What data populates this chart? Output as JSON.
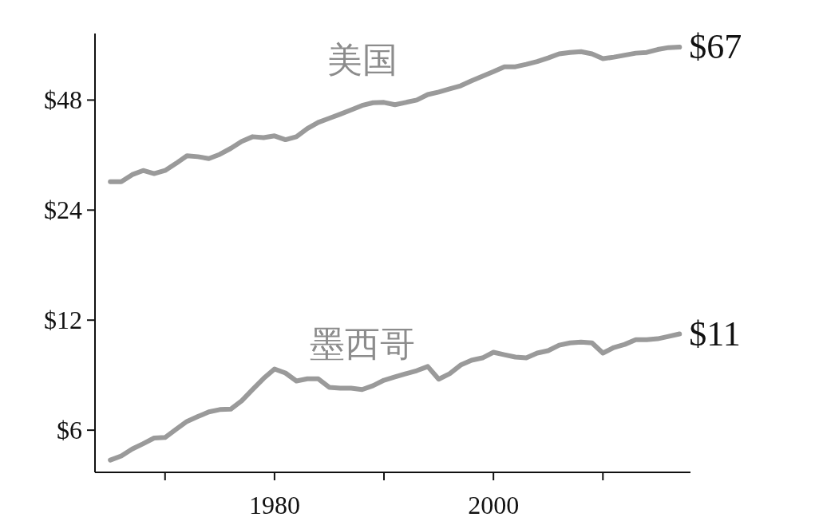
{
  "chart_data": {
    "type": "line",
    "log": true,
    "x": [
      1965,
      1966,
      1967,
      1968,
      1969,
      1970,
      1971,
      1972,
      1973,
      1974,
      1975,
      1976,
      1977,
      1978,
      1979,
      1980,
      1981,
      1982,
      1983,
      1984,
      1985,
      1986,
      1987,
      1988,
      1989,
      1990,
      1991,
      1992,
      1993,
      1994,
      1995,
      1996,
      1997,
      1998,
      1999,
      2000,
      2001,
      2002,
      2003,
      2004,
      2005,
      2006,
      2007,
      2008,
      2009,
      2010,
      2011,
      2012,
      2013,
      2014,
      2015,
      2016,
      2017
    ],
    "series": [
      {
        "name": "美国",
        "color": "#9a9a9a",
        "values": [
          28.7,
          28.7,
          30.0,
          30.8,
          30.2,
          30.8,
          32.2,
          33.8,
          33.6,
          33.2,
          34.1,
          35.4,
          37.0,
          38.1,
          37.9,
          38.3,
          37.4,
          38.1,
          40.1,
          41.7,
          42.8,
          43.9,
          45.1,
          46.4,
          47.2,
          47.3,
          46.6,
          47.3,
          48.0,
          49.7,
          50.5,
          51.5,
          52.5,
          54.2,
          55.8,
          57.4,
          59.2,
          59.2,
          60.1,
          61.2,
          62.6,
          64.2,
          64.8,
          65.1,
          64.2,
          62.3,
          62.9,
          63.7,
          64.5,
          64.8,
          66.0,
          66.8,
          67
        ]
      },
      {
        "name": "墨西哥",
        "color": "#9a9a9a",
        "values": [
          4.97,
          5.1,
          5.33,
          5.51,
          5.71,
          5.73,
          6.03,
          6.34,
          6.54,
          6.73,
          6.83,
          6.85,
          7.22,
          7.75,
          8.31,
          8.82,
          8.6,
          8.18,
          8.29,
          8.29,
          7.86,
          7.82,
          7.82,
          7.75,
          7.94,
          8.22,
          8.39,
          8.56,
          8.73,
          8.96,
          8.27,
          8.56,
          9.04,
          9.32,
          9.46,
          9.8,
          9.65,
          9.51,
          9.46,
          9.75,
          9.9,
          10.25,
          10.4,
          10.45,
          10.4,
          9.75,
          10.1,
          10.3,
          10.61,
          10.61,
          10.67,
          10.83,
          11
        ]
      }
    ],
    "xlim": [
      1963.6,
      2018
    ],
    "xticks": [
      {
        "value": 1970,
        "label": null
      },
      1980,
      {
        "value": 1990,
        "label": null
      },
      2000,
      {
        "value": 2010,
        "label": null
      }
    ],
    "ylim": [
      4.6,
      73
    ],
    "yticks": [
      {
        "value": 6,
        "label": "$6"
      },
      {
        "value": 12,
        "label": "$12"
      },
      {
        "value": 24,
        "label": "$24"
      },
      {
        "value": 48,
        "label": "$48"
      }
    ],
    "annotations": [
      {
        "text": "$67",
        "x": 2017,
        "y": 67
      },
      {
        "text": "$11",
        "x": 2017,
        "y": 11
      }
    ]
  }
}
